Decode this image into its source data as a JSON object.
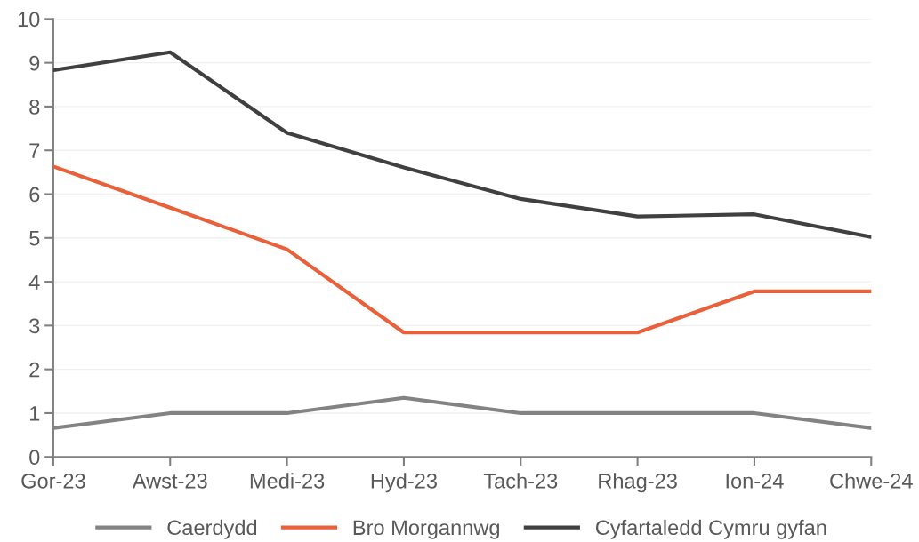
{
  "chart_data": {
    "type": "line",
    "categories": [
      "Gor-23",
      "Awst-23",
      "Medi-23",
      "Hyd-23",
      "Tach-23",
      "Rhag-23",
      "Ion-24",
      "Chwe-24"
    ],
    "series": [
      {
        "name": "Caerdydd",
        "color": "#838383",
        "values": [
          0.66,
          1.0,
          1.0,
          1.35,
          1.0,
          1.0,
          1.0,
          0.66
        ]
      },
      {
        "name": "Bro Morgannwg",
        "color": "#e9603a",
        "values": [
          6.63,
          5.69,
          4.74,
          2.84,
          2.84,
          2.84,
          3.78,
          3.78
        ]
      },
      {
        "name": "Cyfartaledd Cymru gyfan",
        "color": "#404040",
        "values": [
          8.83,
          9.24,
          7.4,
          6.61,
          5.89,
          5.49,
          5.54,
          5.02
        ]
      }
    ],
    "ylim": [
      0,
      10
    ],
    "yticks": [
      0,
      1,
      2,
      3,
      4,
      5,
      6,
      7,
      8,
      9,
      10
    ],
    "grid": "y",
    "legend": "bottom",
    "marker": "none",
    "line_style": "solid"
  }
}
